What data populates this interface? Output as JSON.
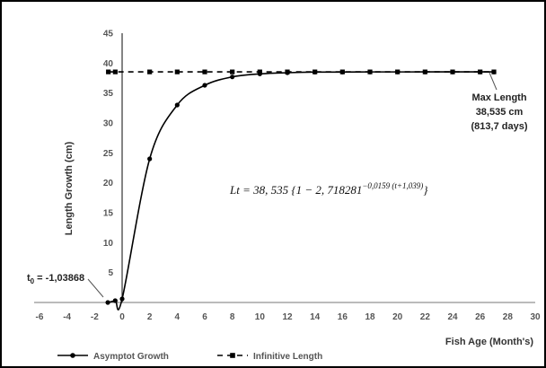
{
  "chart_data": {
    "type": "line",
    "title": "",
    "xlabel": "Fish Age (Month's)",
    "ylabel": "Length Growth (cm)",
    "xlim": [
      -6,
      30
    ],
    "ylim": [
      0,
      45
    ],
    "xticks": [
      -6,
      -4,
      -2,
      0,
      2,
      4,
      6,
      8,
      10,
      12,
      14,
      16,
      18,
      20,
      22,
      24,
      26,
      28,
      30
    ],
    "yticks": [
      5,
      10,
      15,
      20,
      25,
      30,
      35,
      40,
      45
    ],
    "legend_position": "bottom",
    "series": [
      {
        "name": "Asymptot Growth",
        "style": "solid",
        "color": "#000000",
        "x": [
          -1.03868,
          -0.5,
          0,
          2,
          4,
          6,
          8,
          10,
          12,
          14,
          16,
          18,
          20,
          22,
          24,
          26,
          27
        ],
        "y": [
          0,
          0.3,
          0.6,
          24,
          33,
          36.3,
          37.7,
          38.2,
          38.4,
          38.5,
          38.5,
          38.53,
          38.53,
          38.535,
          38.535,
          38.535,
          38.535
        ]
      },
      {
        "name": "Infinitive Length",
        "style": "dashed",
        "color": "#000000",
        "x": [
          -1,
          -0.5,
          2,
          4,
          6,
          8,
          10,
          12,
          14,
          16,
          18,
          20,
          22,
          24,
          26,
          27
        ],
        "y": [
          38.535,
          38.535,
          38.535,
          38.535,
          38.535,
          38.535,
          38.535,
          38.535,
          38.535,
          38.535,
          38.535,
          38.535,
          38.535,
          38.535,
          38.535,
          38.535
        ]
      }
    ],
    "annotations": {
      "t0_label": "t",
      "t0_sub": "0",
      "t0_value": " = -1,03868",
      "max_line1": "Max Length",
      "max_line2": "38,535 cm",
      "max_line3": "(813,7 days)",
      "equation_main": "Lt = 38, 535 {1 − 2, 718281",
      "equation_exp": "−0,0159 (t+1,039)",
      "equation_close": "}"
    }
  }
}
